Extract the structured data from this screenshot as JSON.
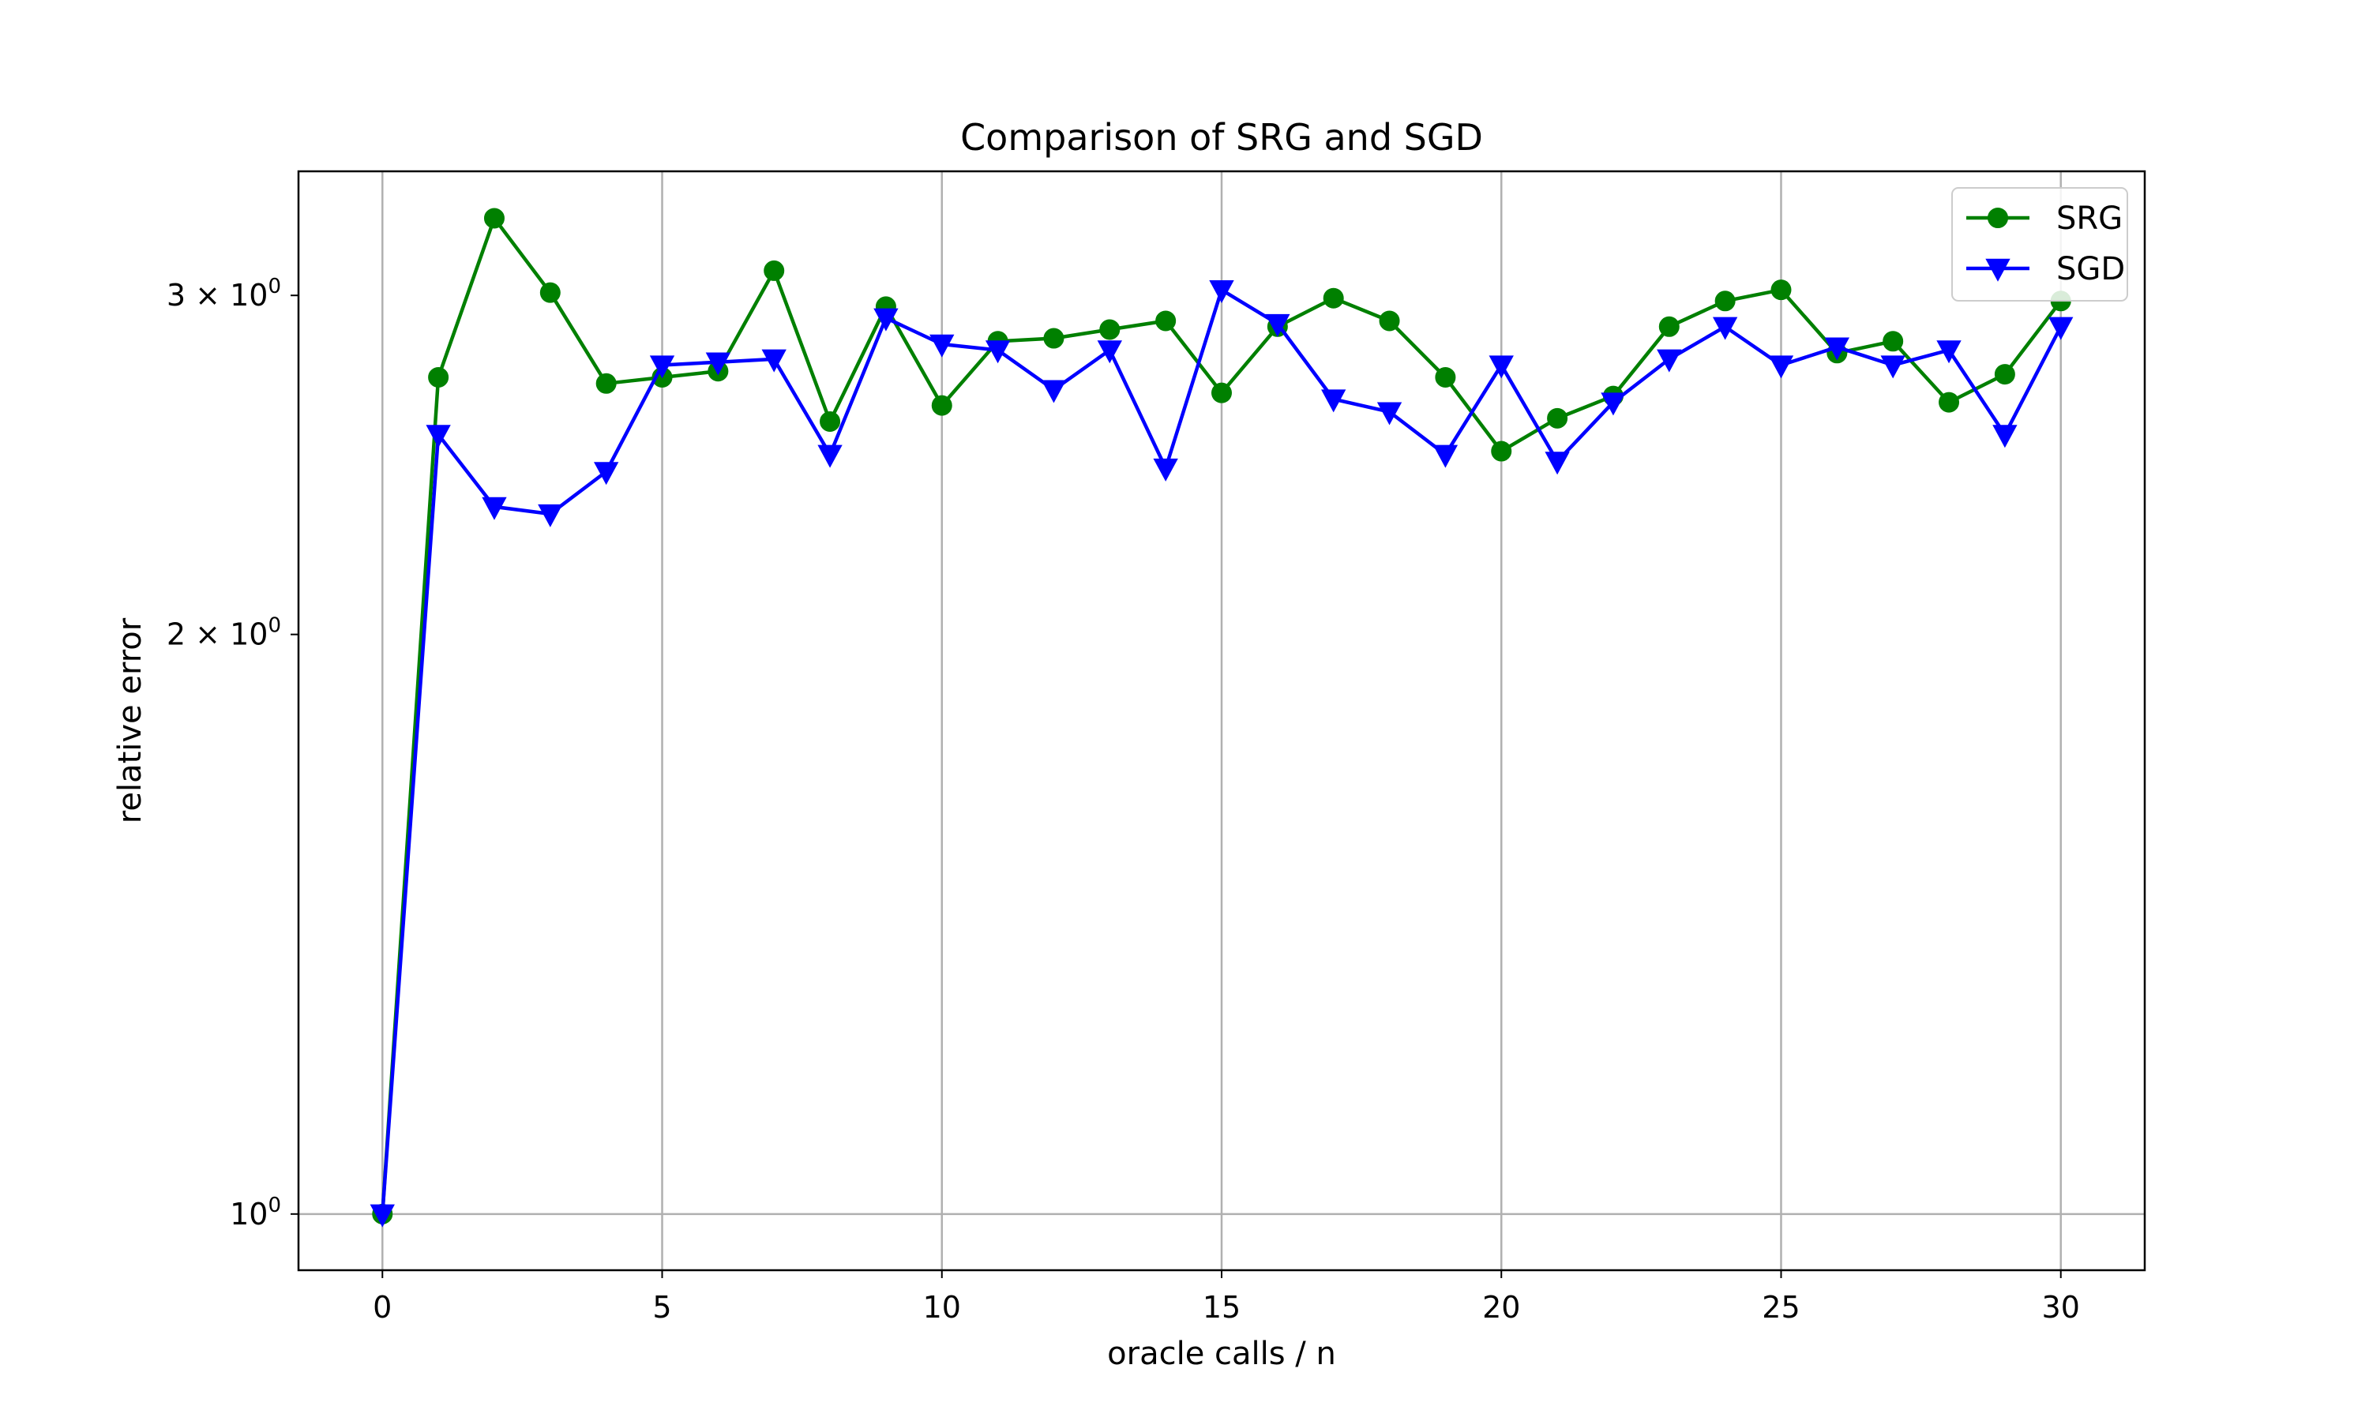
{
  "chart_data": {
    "type": "line",
    "title": "Comparison of SRG and SGD",
    "xlabel": "oracle calls / n",
    "ylabel": "relative error",
    "yscale": "log",
    "xlim": [
      -1.5,
      31.5
    ],
    "ylim": [
      0.935,
      3.48
    ],
    "grid": "vertical lines at x ticks, one horizontal line at y=1",
    "legend_position": "top-right",
    "x_ticks": [
      {
        "value": 0,
        "label": "0"
      },
      {
        "value": 5,
        "label": "5"
      },
      {
        "value": 10,
        "label": "10"
      },
      {
        "value": 15,
        "label": "15"
      },
      {
        "value": 20,
        "label": "20"
      },
      {
        "value": 25,
        "label": "25"
      },
      {
        "value": 30,
        "label": "30"
      }
    ],
    "y_ticks": [
      {
        "value": 1,
        "base": "10",
        "exp": "0"
      },
      {
        "value": 2,
        "base": "2 × 10",
        "exp": "0"
      },
      {
        "value": 3,
        "base": "3 × 10",
        "exp": "0"
      }
    ],
    "x": [
      0,
      1,
      2,
      3,
      4,
      5,
      6,
      7,
      8,
      9,
      10,
      11,
      12,
      13,
      14,
      15,
      16,
      17,
      18,
      19,
      20,
      21,
      22,
      23,
      24,
      25,
      26,
      27,
      28,
      29,
      30
    ],
    "series": [
      {
        "name": "SRG",
        "color": "#008000",
        "marker": "circle",
        "values": [
          1.0,
          2.72,
          3.29,
          3.01,
          2.7,
          2.72,
          2.74,
          3.09,
          2.58,
          2.96,
          2.63,
          2.84,
          2.85,
          2.88,
          2.91,
          2.67,
          2.89,
          2.99,
          2.91,
          2.72,
          2.49,
          2.59,
          2.66,
          2.89,
          2.98,
          3.02,
          2.8,
          2.84,
          2.64,
          2.73,
          2.98
        ]
      },
      {
        "name": "SGD",
        "color": "#0000ff",
        "marker": "triangle-down",
        "values": [
          1.0,
          2.54,
          2.33,
          2.31,
          2.43,
          2.76,
          2.77,
          2.78,
          2.48,
          2.92,
          2.83,
          2.81,
          2.68,
          2.81,
          2.44,
          3.02,
          2.9,
          2.65,
          2.61,
          2.48,
          2.76,
          2.46,
          2.64,
          2.78,
          2.89,
          2.76,
          2.82,
          2.76,
          2.81,
          2.54,
          2.89
        ]
      }
    ]
  }
}
